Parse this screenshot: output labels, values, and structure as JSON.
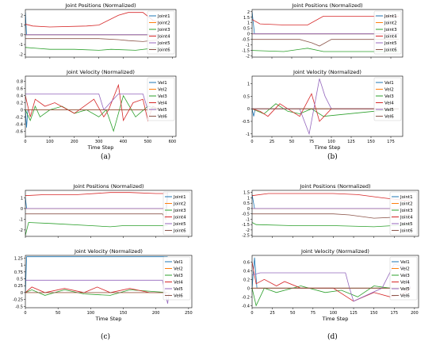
{
  "colors": {
    "Joint1": "#1f77b4",
    "Joint2": "#ff7f0e",
    "Joint3": "#2ca02c",
    "Joint4": "#d62728",
    "Joint5": "#9467bd",
    "Joint6": "#8c564b",
    "Vel1": "#1f77b4",
    "Vel2": "#ff7f0e",
    "Vel3": "#2ca02c",
    "Vel4": "#d62728",
    "Vel5": "#9467bd",
    "Vel6": "#8c564b"
  },
  "panels": [
    {
      "label": "(a)",
      "xticks": [
        0,
        100,
        200,
        300,
        400,
        500,
        600
      ],
      "xmax": 615
    },
    {
      "label": "(b)",
      "xticks": [
        0,
        25,
        50,
        75,
        100,
        125,
        150,
        175
      ],
      "xmax": 190
    },
    {
      "label": "(c)",
      "xticks": [
        0,
        50,
        100,
        150,
        200,
        250
      ],
      "xmax": 255
    },
    {
      "label": "(d)",
      "xticks": [
        0,
        25,
        50,
        75,
        100,
        125,
        150,
        175,
        200
      ],
      "xmax": 205
    }
  ],
  "chart_data": [
    {
      "type": "line",
      "panel": "a",
      "title": "Joint Positions (Normalized)",
      "xlabel": "",
      "ylabel": "",
      "xlim": [
        0,
        615
      ],
      "ylim": [
        -2.3,
        2.6
      ],
      "yticks": [
        -2,
        -1,
        0,
        1,
        2
      ],
      "series": [
        {
          "name": "Joint1",
          "x": [
            0,
            5,
            550
          ],
          "y": [
            2.3,
            0.0,
            0.0
          ]
        },
        {
          "name": "Joint2",
          "x": [
            0,
            550
          ],
          "y": [
            0.0,
            0.0
          ]
        },
        {
          "name": "Joint3",
          "x": [
            0,
            50,
            100,
            200,
            300,
            350,
            450,
            550
          ],
          "y": [
            -1.3,
            -1.4,
            -1.5,
            -1.5,
            -1.6,
            -1.5,
            -1.6,
            -1.3
          ]
        },
        {
          "name": "Joint4",
          "x": [
            0,
            30,
            100,
            250,
            300,
            380,
            420,
            480,
            520,
            550
          ],
          "y": [
            1.1,
            0.9,
            0.8,
            0.9,
            1.0,
            2.0,
            2.3,
            2.3,
            1.5,
            1.2
          ]
        },
        {
          "name": "Joint5",
          "x": [
            0,
            550
          ],
          "y": [
            0.0,
            0.0
          ]
        },
        {
          "name": "Joint6",
          "x": [
            0,
            100,
            200,
            300,
            380,
            420,
            480,
            550
          ],
          "y": [
            -0.4,
            -0.4,
            -0.4,
            -0.4,
            -0.5,
            -0.6,
            -0.7,
            -0.5
          ]
        }
      ]
    },
    {
      "type": "line",
      "panel": "a",
      "title": "Joint Velocity (Normalized)",
      "xlabel": "Time Step",
      "ylabel": "",
      "xlim": [
        0,
        615
      ],
      "ylim": [
        -0.75,
        0.95
      ],
      "yticks": [
        -0.6,
        -0.4,
        -0.2,
        0.0,
        0.2,
        0.4,
        0.6,
        0.8
      ],
      "series": [
        {
          "name": "Vel1",
          "x": [
            0,
            5,
            10,
            550
          ],
          "y": [
            0.0,
            -0.5,
            0.0,
            0.0
          ]
        },
        {
          "name": "Vel2",
          "x": [
            0,
            550
          ],
          "y": [
            0.0,
            0.0
          ]
        },
        {
          "name": "Vel3",
          "x": [
            0,
            20,
            40,
            60,
            100,
            150,
            200,
            250,
            300,
            330,
            360,
            400,
            450,
            500,
            550
          ],
          "y": [
            0.0,
            -0.3,
            0.1,
            -0.2,
            0.0,
            0.1,
            -0.1,
            0.0,
            -0.2,
            0.0,
            -0.6,
            0.4,
            -0.2,
            0.1,
            0.0
          ]
        },
        {
          "name": "Vel4",
          "x": [
            0,
            20,
            40,
            80,
            120,
            200,
            280,
            320,
            340,
            380,
            400,
            440,
            480,
            500,
            520,
            550
          ],
          "y": [
            0.4,
            -0.2,
            0.3,
            0.1,
            0.2,
            -0.1,
            0.3,
            -0.2,
            0.0,
            0.7,
            -0.3,
            0.2,
            0.3,
            -0.3,
            0.1,
            0.0
          ]
        },
        {
          "name": "Vel5",
          "x": [
            0,
            300,
            320,
            380,
            420,
            480,
            500,
            550
          ],
          "y": [
            0.45,
            0.45,
            0.0,
            0.45,
            0.45,
            0.45,
            0.0,
            0.0
          ]
        },
        {
          "name": "Vel6",
          "x": [
            0,
            550
          ],
          "y": [
            0.0,
            0.0
          ]
        }
      ]
    },
    {
      "type": "line",
      "panel": "b",
      "title": "Joint Positions (Normalized)",
      "xlabel": "",
      "ylabel": "",
      "xlim": [
        0,
        190
      ],
      "ylim": [
        -2.1,
        2.2
      ],
      "yticks": [
        -2.0,
        -1.5,
        -1.0,
        -0.5,
        0.0,
        0.5,
        1.0,
        1.5,
        2.0
      ],
      "series": [
        {
          "name": "Joint1",
          "x": [
            0,
            3,
            185
          ],
          "y": [
            2.0,
            0.0,
            0.0
          ]
        },
        {
          "name": "Joint2",
          "x": [
            0,
            185
          ],
          "y": [
            0.0,
            0.0
          ]
        },
        {
          "name": "Joint3",
          "x": [
            0,
            40,
            70,
            90,
            185
          ],
          "y": [
            -1.5,
            -1.6,
            -1.3,
            -1.6,
            -1.6
          ]
        },
        {
          "name": "Joint4",
          "x": [
            0,
            10,
            40,
            70,
            90,
            120,
            185
          ],
          "y": [
            1.3,
            0.9,
            0.8,
            0.8,
            1.6,
            1.6,
            1.6
          ]
        },
        {
          "name": "Joint5",
          "x": [
            0,
            185
          ],
          "y": [
            0.0,
            0.0
          ]
        },
        {
          "name": "Joint6",
          "x": [
            0,
            60,
            75,
            85,
            100,
            185
          ],
          "y": [
            -0.5,
            -0.5,
            -0.8,
            -1.1,
            -0.5,
            -0.5
          ]
        }
      ]
    },
    {
      "type": "line",
      "panel": "b",
      "title": "Joint Velocity (Normalized)",
      "xlabel": "Time Step",
      "ylabel": "",
      "xlim": [
        0,
        190
      ],
      "ylim": [
        -1.1,
        1.3
      ],
      "yticks": [
        -1.0,
        -0.5,
        0.0,
        0.5,
        1.0
      ],
      "series": [
        {
          "name": "Vel1",
          "x": [
            0,
            2,
            4,
            185
          ],
          "y": [
            0.0,
            -0.3,
            0.0,
            0.0
          ]
        },
        {
          "name": "Vel2",
          "x": [
            0,
            185
          ],
          "y": [
            0.0,
            0.0
          ]
        },
        {
          "name": "Vel3",
          "x": [
            0,
            15,
            30,
            45,
            60,
            75,
            90,
            185
          ],
          "y": [
            0.0,
            -0.2,
            0.2,
            -0.1,
            -0.2,
            0.0,
            -0.3,
            0.0
          ]
        },
        {
          "name": "Vel4",
          "x": [
            0,
            10,
            20,
            35,
            45,
            60,
            75,
            85,
            100,
            185
          ],
          "y": [
            0.0,
            -0.1,
            -0.3,
            0.2,
            0.0,
            -0.3,
            0.6,
            -0.5,
            0.0,
            0.0
          ]
        },
        {
          "name": "Vel5",
          "x": [
            0,
            60,
            72,
            85,
            92,
            100,
            185
          ],
          "y": [
            0.0,
            0.0,
            -1.0,
            1.2,
            0.5,
            0.0,
            0.0
          ]
        },
        {
          "name": "Vel6",
          "x": [
            0,
            185
          ],
          "y": [
            0.0,
            0.0
          ]
        }
      ]
    },
    {
      "type": "line",
      "panel": "c",
      "title": "Joint Positions (Normalized)",
      "xlabel": "",
      "ylabel": "",
      "xlim": [
        0,
        255
      ],
      "ylim": [
        -2.6,
        1.7
      ],
      "yticks": [
        -2,
        -1,
        0,
        1
      ],
      "series": [
        {
          "name": "Joint1",
          "x": [
            0,
            2,
            215,
            218
          ],
          "y": [
            1.0,
            0.0,
            0.0,
            1.5
          ]
        },
        {
          "name": "Joint2",
          "x": [
            0,
            218
          ],
          "y": [
            0.0,
            0.0
          ]
        },
        {
          "name": "Joint3",
          "x": [
            0,
            5,
            40,
            100,
            130,
            150,
            200,
            218
          ],
          "y": [
            -2.5,
            -1.3,
            -1.4,
            -1.6,
            -1.7,
            -1.6,
            -1.6,
            -1.6
          ]
        },
        {
          "name": "Joint4",
          "x": [
            0,
            30,
            80,
            130,
            160,
            200,
            218
          ],
          "y": [
            1.2,
            1.3,
            1.3,
            1.5,
            1.5,
            1.4,
            1.4
          ]
        },
        {
          "name": "Joint5",
          "x": [
            0,
            218
          ],
          "y": [
            0.0,
            0.0
          ]
        },
        {
          "name": "Joint6",
          "x": [
            0,
            210,
            215,
            218
          ],
          "y": [
            -0.5,
            -0.5,
            -1.0,
            1.2
          ]
        }
      ]
    },
    {
      "type": "line",
      "panel": "c",
      "title": "Joint Velocity (Normalized)",
      "xlabel": "Time Step",
      "ylabel": "",
      "xlim": [
        0,
        255
      ],
      "ylim": [
        -0.55,
        1.35
      ],
      "yticks": [
        -0.5,
        -0.25,
        0.0,
        0.25,
        0.5,
        0.75,
        1.0,
        1.25
      ],
      "series": [
        {
          "name": "Vel1",
          "x": [
            0,
            2,
            4,
            218
          ],
          "y": [
            0.0,
            1.3,
            1.3,
            1.3
          ]
        },
        {
          "name": "Vel2",
          "x": [
            0,
            218
          ],
          "y": [
            0.0,
            0.0
          ]
        },
        {
          "name": "Vel3",
          "x": [
            0,
            10,
            30,
            60,
            90,
            130,
            160,
            218
          ],
          "y": [
            0.0,
            0.1,
            -0.1,
            0.1,
            -0.05,
            -0.1,
            0.1,
            0.0
          ]
        },
        {
          "name": "Vel4",
          "x": [
            0,
            10,
            30,
            60,
            90,
            110,
            130,
            160,
            190,
            218
          ],
          "y": [
            0.0,
            0.2,
            0.0,
            0.15,
            0.0,
            0.2,
            0.0,
            0.15,
            0.0,
            0.0
          ]
        },
        {
          "name": "Vel5",
          "x": [
            0,
            210,
            214,
            218,
            220
          ],
          "y": [
            0.45,
            0.45,
            0.0,
            -0.4,
            0.0
          ]
        },
        {
          "name": "Vel6",
          "x": [
            0,
            218
          ],
          "y": [
            0.0,
            0.0
          ]
        }
      ]
    },
    {
      "type": "line",
      "panel": "d",
      "title": "Joint Positions (Normalized)",
      "xlabel": "",
      "ylabel": "",
      "xlim": [
        0,
        205
      ],
      "ylim": [
        -2.6,
        1.7
      ],
      "yticks": [
        -2.5,
        -2.0,
        -1.5,
        -1.0,
        -0.5,
        0.0,
        0.5,
        1.0,
        1.5
      ],
      "series": [
        {
          "name": "Joint1",
          "x": [
            0,
            3,
            195
          ],
          "y": [
            1.3,
            0.0,
            0.0
          ]
        },
        {
          "name": "Joint2",
          "x": [
            0,
            195
          ],
          "y": [
            0.0,
            0.0
          ]
        },
        {
          "name": "Joint3",
          "x": [
            0,
            5,
            50,
            100,
            150,
            195
          ],
          "y": [
            -1.3,
            -1.5,
            -1.6,
            -1.6,
            -1.7,
            -1.5
          ]
        },
        {
          "name": "Joint4",
          "x": [
            0,
            20,
            100,
            130,
            160,
            195
          ],
          "y": [
            1.2,
            1.4,
            1.4,
            1.3,
            1.0,
            0.7
          ]
        },
        {
          "name": "Joint5",
          "x": [
            0,
            195
          ],
          "y": [
            0.0,
            0.0
          ]
        },
        {
          "name": "Joint6",
          "x": [
            0,
            100,
            120,
            150,
            180,
            195
          ],
          "y": [
            -0.5,
            -0.5,
            -0.6,
            -0.9,
            -0.8,
            -0.5
          ]
        }
      ]
    },
    {
      "type": "line",
      "panel": "d",
      "title": "Joint Velocity (Normalized)",
      "xlabel": "Time Step",
      "ylabel": "",
      "xlim": [
        0,
        205
      ],
      "ylim": [
        -0.45,
        0.75
      ],
      "yticks": [
        -0.4,
        -0.2,
        0.0,
        0.2,
        0.4,
        0.6
      ],
      "series": [
        {
          "name": "Vel1",
          "x": [
            0,
            3,
            6,
            195
          ],
          "y": [
            0.0,
            0.7,
            0.0,
            0.0
          ]
        },
        {
          "name": "Vel2",
          "x": [
            0,
            195
          ],
          "y": [
            0.0,
            0.0
          ]
        },
        {
          "name": "Vel3",
          "x": [
            0,
            5,
            15,
            30,
            60,
            90,
            110,
            130,
            150,
            170,
            195
          ],
          "y": [
            0.0,
            -0.4,
            0.0,
            -0.1,
            0.05,
            -0.1,
            -0.05,
            -0.2,
            0.05,
            0.0,
            0.0
          ]
        },
        {
          "name": "Vel4",
          "x": [
            0,
            5,
            15,
            30,
            40,
            60,
            100,
            125,
            150,
            170,
            185,
            195
          ],
          "y": [
            0.6,
            0.1,
            0.2,
            0.05,
            0.15,
            0.0,
            0.0,
            -0.3,
            -0.1,
            -0.2,
            -0.15,
            0.0
          ]
        },
        {
          "name": "Vel5",
          "x": [
            0,
            10,
            115,
            120,
            125,
            160,
            175,
            185,
            195
          ],
          "y": [
            0.3,
            0.35,
            0.35,
            0.0,
            -0.3,
            0.0,
            0.55,
            0.5,
            0.0
          ]
        },
        {
          "name": "Vel6",
          "x": [
            0,
            195
          ],
          "y": [
            0.0,
            0.0
          ]
        }
      ]
    }
  ]
}
